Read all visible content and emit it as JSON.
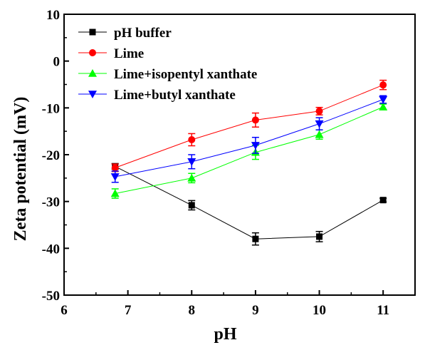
{
  "chart_data": {
    "type": "line",
    "title": "",
    "xlabel": "pH",
    "ylabel": "Zeta potential (mV)",
    "xlim": [
      6,
      11.5
    ],
    "ylim": [
      -50,
      10
    ],
    "xticks": [
      6,
      7,
      8,
      9,
      10,
      11
    ],
    "yticks": [
      -50,
      -40,
      -30,
      -20,
      -10,
      0,
      10
    ],
    "grid": false,
    "legend_position": "top-left",
    "x": [
      6.8,
      8,
      9,
      10,
      11
    ],
    "series": [
      {
        "name": "pH buffer",
        "color": "#000000",
        "marker": "square",
        "values": [
          -22.5,
          -30.8,
          -38.0,
          -37.5,
          -29.7
        ],
        "errors": [
          0.6,
          1.0,
          1.3,
          1.1,
          0.4
        ]
      },
      {
        "name": "Lime",
        "color": "#ff0000",
        "marker": "circle",
        "values": [
          -22.8,
          -16.8,
          -12.6,
          -10.7,
          -5.1
        ],
        "errors": [
          0.8,
          1.3,
          1.5,
          0.8,
          1.0
        ]
      },
      {
        "name": "Lime+isopentyl xanthate",
        "color": "#00ff00",
        "marker": "triangle-up",
        "values": [
          -28.3,
          -25.0,
          -19.5,
          -15.7,
          -9.8
        ],
        "errors": [
          1.0,
          1.0,
          1.5,
          1.0,
          0.6
        ]
      },
      {
        "name": "Lime+butyl xanthate",
        "color": "#0000ff",
        "marker": "triangle-down",
        "values": [
          -24.7,
          -21.5,
          -18.0,
          -13.4,
          -8.2
        ],
        "errors": [
          1.2,
          1.5,
          1.7,
          1.3,
          0.8
        ]
      }
    ]
  }
}
